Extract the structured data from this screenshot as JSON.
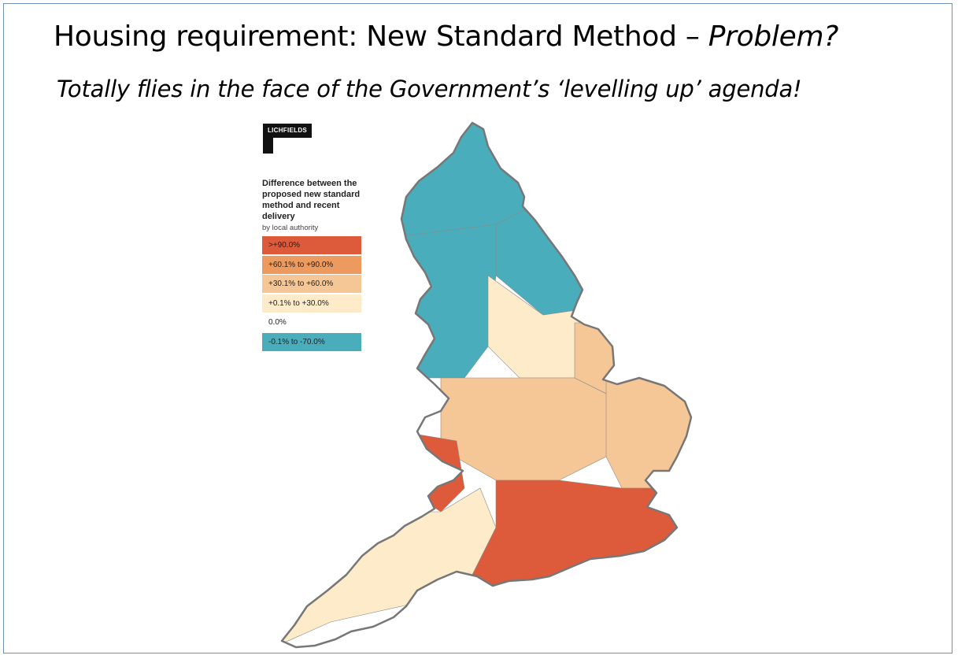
{
  "slide": {
    "title": "Housing requirement: New Standard Method –",
    "title_emphasis": "Problem?",
    "subtitle": "Totally flies in the face of the Government’s ‘levelling up’ agenda!"
  },
  "logo": {
    "text": "LICHFIELDS"
  },
  "legend": {
    "title": "Difference between the proposed new standard method and recent delivery",
    "subtitle": "by local authority",
    "items": [
      {
        "label": ">+90.0%",
        "color": "#dd5a3a"
      },
      {
        "label": "+60.1% to +90.0%",
        "color": "#ec9a5e"
      },
      {
        "label": "+30.1% to +60.0%",
        "color": "#f6c796"
      },
      {
        "label": "+0.1% to +30.0%",
        "color": "#fdebc9"
      },
      {
        "label": "0.0%",
        "color": "#ffffff"
      },
      {
        "label": "-0.1% to -70.0%",
        "color": "#4aadbb"
      }
    ]
  },
  "map": {
    "region": "England",
    "border_color": "#777777",
    "regions": [
      {
        "name": "north",
        "category": "-0.1% to -70.0%",
        "color": "#4aadbb"
      },
      {
        "name": "north-east-coast",
        "category": "-0.1% to -70.0%",
        "color": "#4aadbb"
      },
      {
        "name": "north-west",
        "category": "-0.1% to -70.0%",
        "color": "#4aadbb"
      },
      {
        "name": "yorkshire",
        "category": "+0.1% to +30.0%",
        "color": "#fdebc9"
      },
      {
        "name": "lincolnshire",
        "category": "+30.1% to +60.0%",
        "color": "#f6c796"
      },
      {
        "name": "midlands",
        "category": "+30.1% to +60.0%",
        "color": "#f6c796"
      },
      {
        "name": "east-anglia",
        "category": "+30.1% to +60.0%",
        "color": "#f6c796"
      },
      {
        "name": "welsh-border",
        "category": ">+90.0%",
        "color": "#dd5a3a"
      },
      {
        "name": "south-west",
        "category": "+0.1% to +30.0%",
        "color": "#fdebc9"
      },
      {
        "name": "south-east",
        "category": ">+90.0%",
        "color": "#dd5a3a"
      }
    ]
  }
}
